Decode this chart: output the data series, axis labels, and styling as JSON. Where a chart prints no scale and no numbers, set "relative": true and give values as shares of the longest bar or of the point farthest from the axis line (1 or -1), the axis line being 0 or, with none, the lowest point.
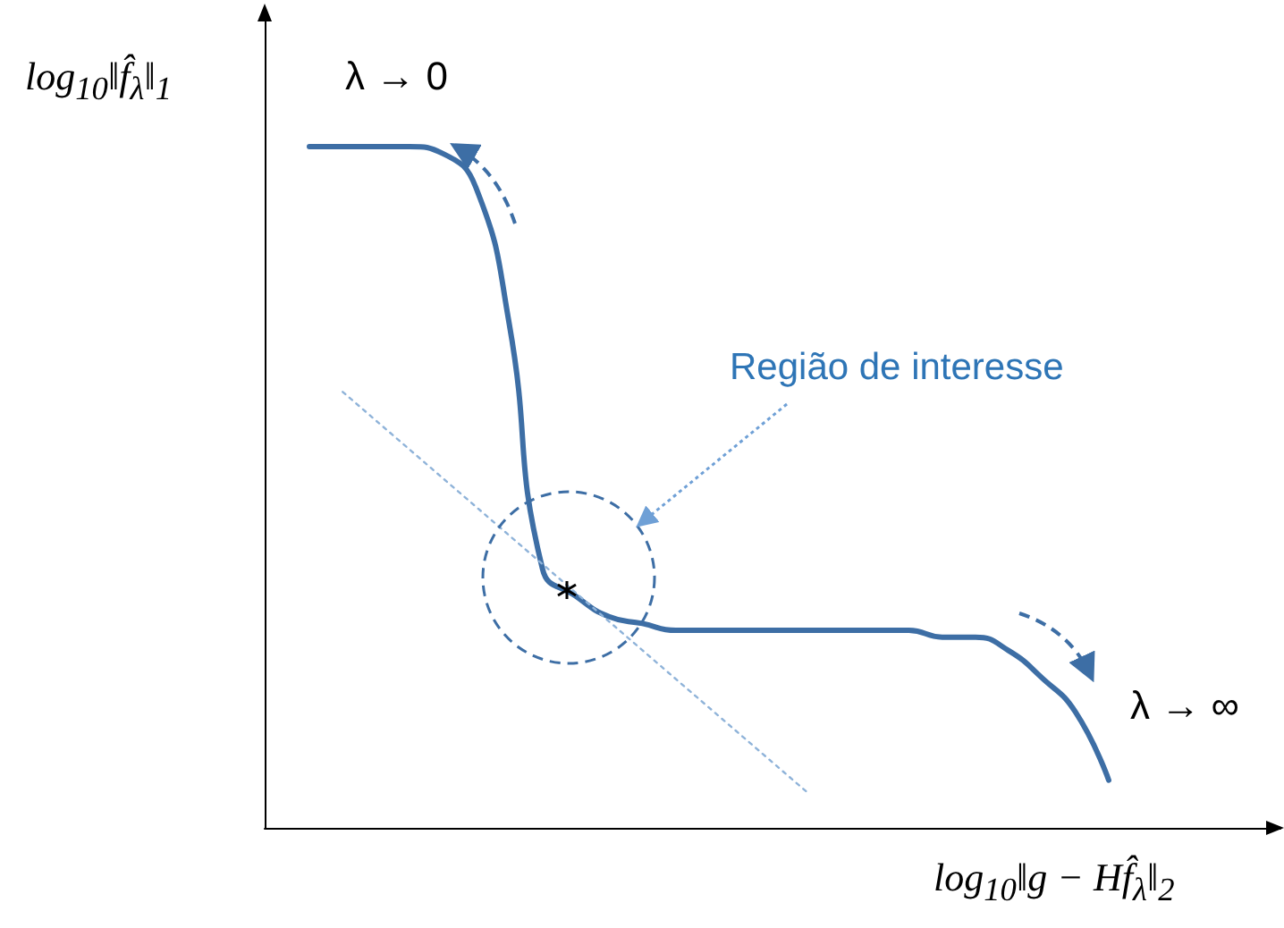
{
  "chart_data": {
    "type": "line",
    "relative": true,
    "xlabel": "log$_{10}$‖g − Hf̂$_{λ}$‖$_{2}$",
    "ylabel": "log$_{10}$‖f̂$_{λ}$‖$_{1}$",
    "annotations": [
      "λ → 0",
      "λ → ∞",
      "Região de interesse"
    ],
    "categories": [
      null,
      null,
      null,
      null,
      null,
      null,
      null,
      null,
      null,
      null,
      null,
      null,
      null,
      null,
      null,
      null,
      null,
      null,
      null,
      null,
      null,
      null,
      null,
      null,
      null
    ],
    "series": [
      {
        "color": "#3d6ea5",
        "values": [
          1.0,
          1.0,
          1.0,
          1.0,
          0.99,
          0.94,
          0.74,
          0.38,
          0.34,
          0.31,
          0.3,
          0.29,
          0.29,
          0.29,
          0.29,
          0.29,
          0.29,
          0.29,
          0.29,
          0.28,
          0.28,
          0.26,
          0.22,
          0.17,
          0.07
        ]
      },
      {
        "color": "#8fb3d9",
        "line_style": "dotted",
        "values": [
          null,
          0.64,
          null,
          null,
          null,
          null,
          null,
          null,
          null,
          null,
          null,
          null,
          null,
          null,
          null,
          0.05,
          null,
          null,
          null,
          null,
          null,
          null,
          null,
          null,
          null
        ]
      }
    ]
  }
}
